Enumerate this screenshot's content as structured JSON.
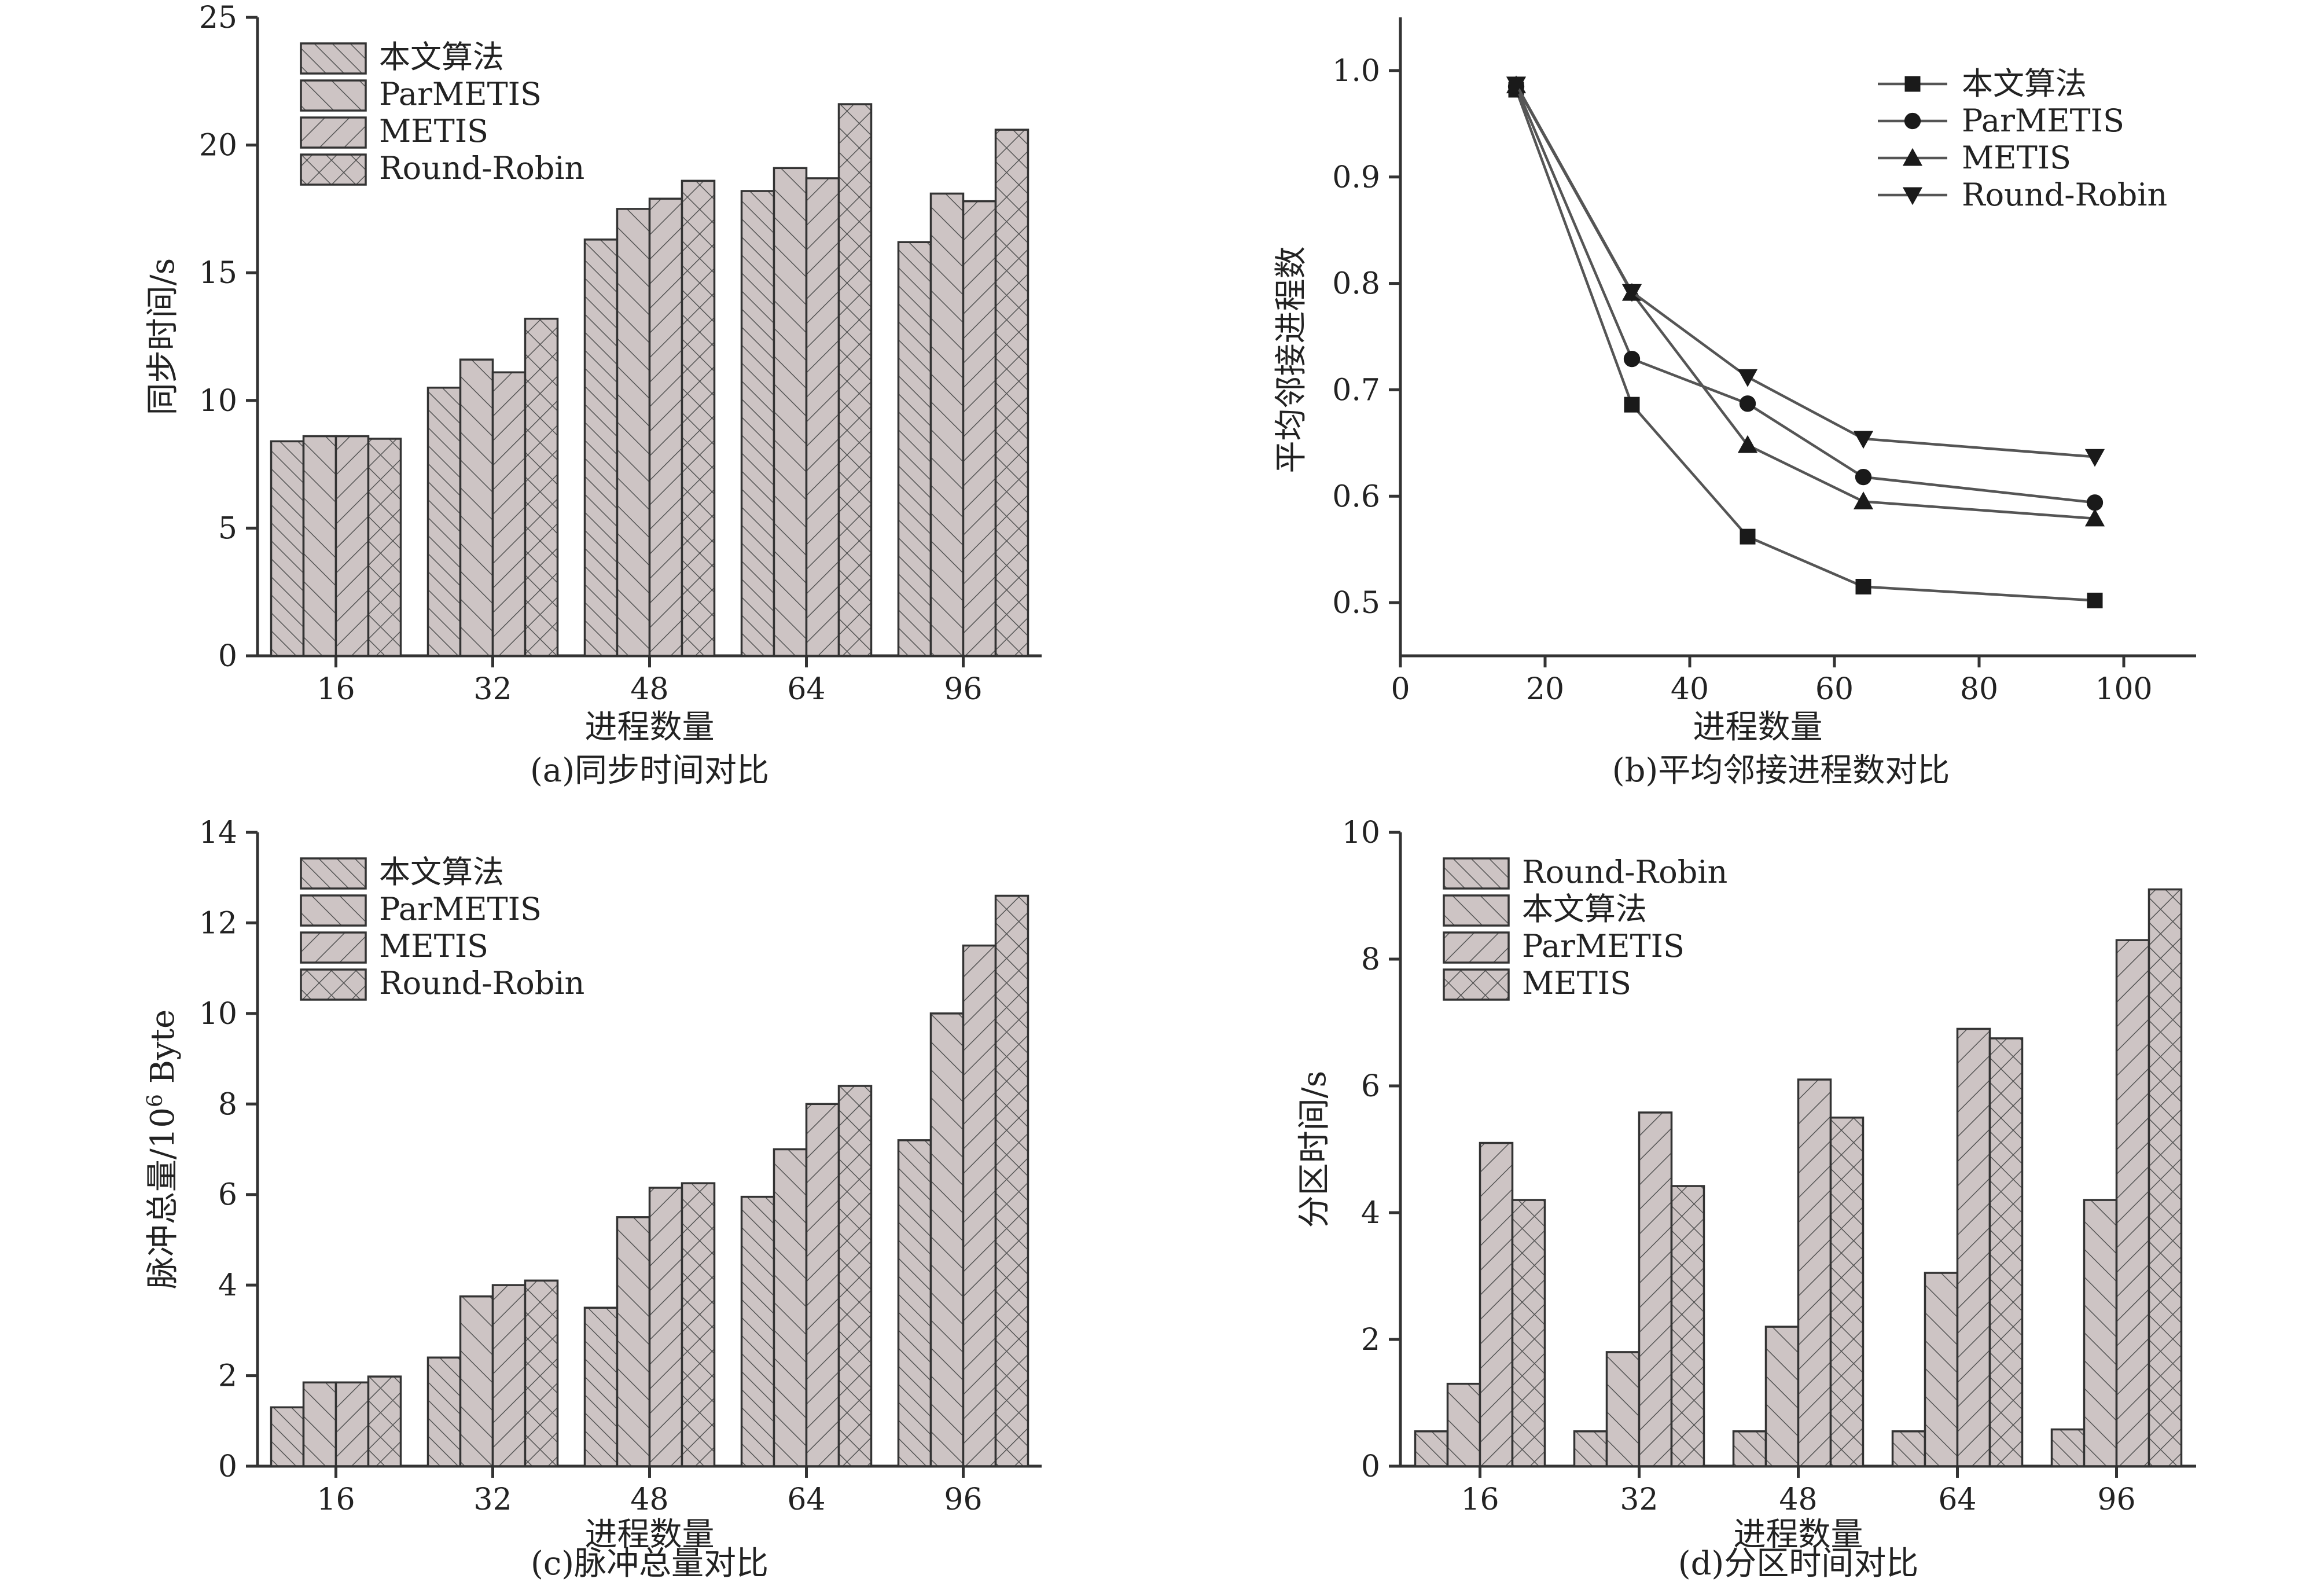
{
  "chart_data": [
    {
      "id": "a",
      "type": "bar",
      "caption": "(a)同步时间对比",
      "xlabel": "进程数量",
      "ylabel": "同步时间/s",
      "categories": [
        "16",
        "32",
        "48",
        "64",
        "96"
      ],
      "ylim": [
        0,
        25
      ],
      "yticks": [
        0,
        5,
        10,
        15,
        20,
        25
      ],
      "legend": "top-left",
      "series": [
        {
          "name": "本文算法",
          "pattern": "diag-up",
          "values": [
            8.4,
            10.5,
            16.3,
            18.2,
            16.2
          ]
        },
        {
          "name": "ParMETIS",
          "pattern": "diag-up-wide",
          "values": [
            8.6,
            11.6,
            17.5,
            19.1,
            18.1
          ]
        },
        {
          "name": "METIS",
          "pattern": "diag-down",
          "values": [
            8.6,
            11.1,
            17.9,
            18.7,
            17.8
          ]
        },
        {
          "name": "Round-Robin",
          "pattern": "cross",
          "values": [
            8.5,
            13.2,
            18.6,
            21.6,
            20.6
          ]
        }
      ]
    },
    {
      "id": "b",
      "type": "line",
      "caption": "(b)平均邻接进程数对比",
      "xlabel": "进程数量",
      "ylabel": "平均邻接进程数",
      "x": [
        16,
        32,
        48,
        64,
        96
      ],
      "xlim": [
        0,
        110
      ],
      "xticks": [
        0,
        20,
        40,
        60,
        80,
        100
      ],
      "ylim": [
        0.45,
        1.05
      ],
      "yticks": [
        "0.5",
        "0.6",
        "0.7",
        "0.8",
        "0.9",
        "1.0"
      ],
      "legend": "top-right",
      "series": [
        {
          "name": "本文算法",
          "marker": "square",
          "values": [
            0.982,
            0.686,
            0.562,
            0.515,
            0.502
          ]
        },
        {
          "name": "ParMETIS",
          "marker": "circle",
          "values": [
            0.985,
            0.729,
            0.687,
            0.618,
            0.594
          ]
        },
        {
          "name": "METIS",
          "marker": "triangle-up",
          "values": [
            0.986,
            0.791,
            0.648,
            0.595,
            0.579
          ]
        },
        {
          "name": "Round-Robin",
          "marker": "triangle-down",
          "values": [
            0.987,
            0.792,
            0.712,
            0.654,
            0.637
          ]
        }
      ]
    },
    {
      "id": "c",
      "type": "bar",
      "caption": "(c)脉冲总量对比",
      "xlabel": "进程数量",
      "ylabel_main": "脉冲总量/10",
      "ylabel_sup": "6",
      "ylabel_unit": " Byte",
      "categories": [
        "16",
        "32",
        "48",
        "64",
        "96"
      ],
      "ylim": [
        0,
        14
      ],
      "yticks": [
        0,
        2,
        4,
        6,
        8,
        10,
        12,
        14
      ],
      "legend": "top-left",
      "series": [
        {
          "name": "本文算法",
          "pattern": "diag-up",
          "values": [
            1.3,
            2.4,
            3.5,
            5.95,
            7.2
          ]
        },
        {
          "name": "ParMETIS",
          "pattern": "diag-up-wide",
          "values": [
            1.85,
            3.75,
            5.5,
            7.0,
            10.0
          ]
        },
        {
          "name": "METIS",
          "pattern": "diag-down",
          "values": [
            1.85,
            4.0,
            6.15,
            8.0,
            11.5
          ]
        },
        {
          "name": "Round-Robin",
          "pattern": "cross",
          "values": [
            1.98,
            4.1,
            6.25,
            8.4,
            12.6
          ]
        }
      ]
    },
    {
      "id": "d",
      "type": "bar",
      "caption": "(d)分区时间对比",
      "xlabel": "进程数量",
      "ylabel": "分区时间/s",
      "categories": [
        "16",
        "32",
        "48",
        "64",
        "96"
      ],
      "ylim": [
        0,
        10
      ],
      "yticks": [
        0,
        2,
        4,
        6,
        8,
        10
      ],
      "legend": "top-left",
      "series": [
        {
          "name": "Round-Robin",
          "pattern": "diag-up",
          "values": [
            0.55,
            0.55,
            0.55,
            0.55,
            0.58
          ]
        },
        {
          "name": "本文算法",
          "pattern": "diag-up-wide",
          "values": [
            1.3,
            1.8,
            2.2,
            3.05,
            4.2
          ]
        },
        {
          "name": "ParMETIS",
          "pattern": "diag-down",
          "values": [
            5.1,
            5.58,
            6.1,
            6.9,
            8.3
          ]
        },
        {
          "name": "METIS",
          "pattern": "cross",
          "values": [
            4.2,
            4.42,
            5.5,
            6.75,
            9.1
          ]
        }
      ]
    }
  ]
}
